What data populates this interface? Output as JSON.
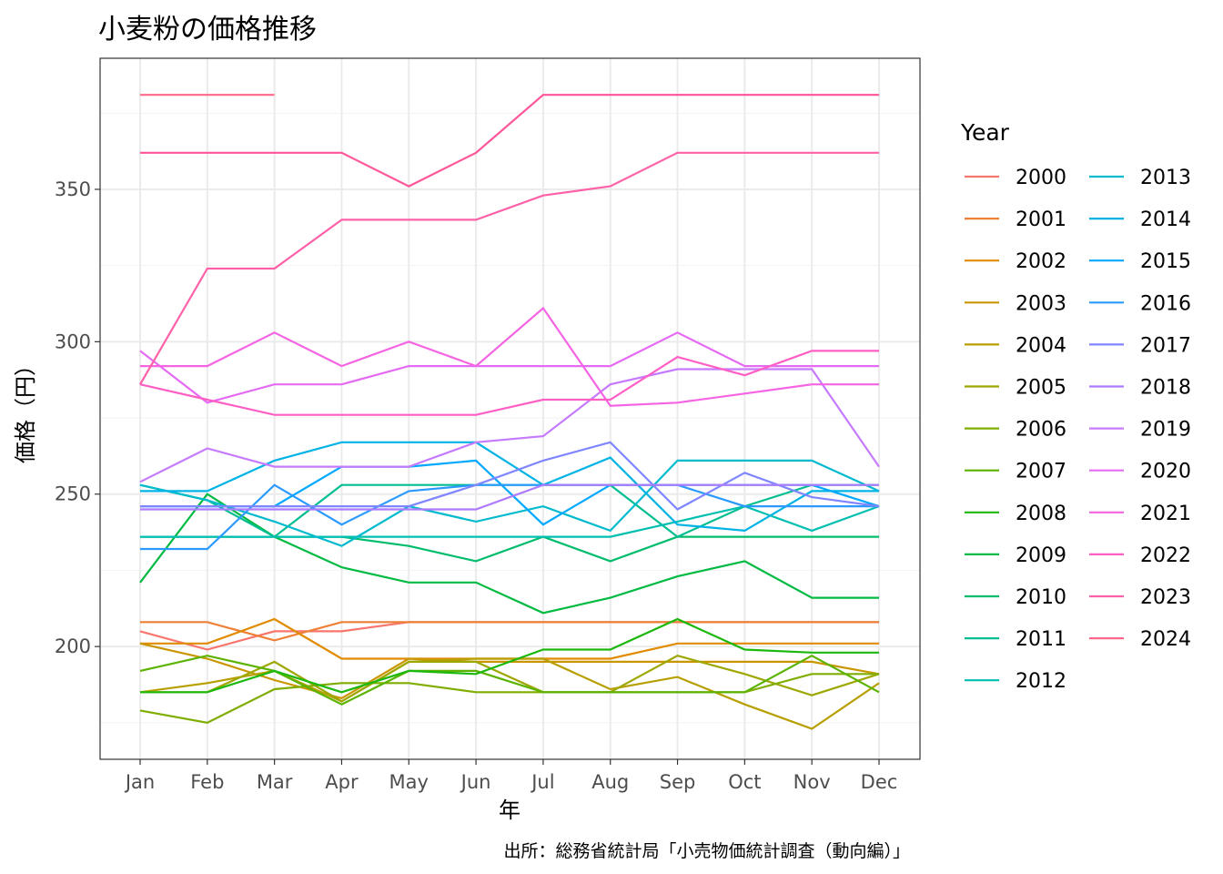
{
  "chart_data": {
    "type": "line",
    "title": "小麦粉の価格推移",
    "xlabel": "年",
    "ylabel": "価格（円）",
    "caption": "出所：総務省統計局「小売物価統計調査（動向編）」",
    "legend_title": "Year",
    "legend_position": "right",
    "grid": true,
    "categories": [
      "Jan",
      "Feb",
      "Mar",
      "Apr",
      "May",
      "Jun",
      "Jul",
      "Aug",
      "Sep",
      "Oct",
      "Nov",
      "Dec"
    ],
    "ylim": [
      163,
      393
    ],
    "yticks": [
      200,
      250,
      300,
      350
    ],
    "series": [
      {
        "name": "2000",
        "color": "#F8766D",
        "values": [
          205,
          199,
          205,
          205,
          208,
          208,
          208,
          208,
          208,
          208,
          208,
          208
        ]
      },
      {
        "name": "2001",
        "color": "#EE7F36",
        "values": [
          208,
          208,
          202,
          208,
          208,
          208,
          208,
          208,
          208,
          208,
          208,
          208
        ]
      },
      {
        "name": "2002",
        "color": "#E08B00",
        "values": [
          201,
          201,
          209,
          196,
          196,
          196,
          196,
          196,
          201,
          201,
          201,
          201
        ]
      },
      {
        "name": "2003",
        "color": "#CA9600",
        "values": [
          201,
          196,
          189,
          183,
          196,
          195,
          195,
          195,
          195,
          195,
          195,
          191
        ]
      },
      {
        "name": "2004",
        "color": "#B89F00",
        "values": [
          185,
          188,
          192,
          182,
          195,
          196,
          196,
          186,
          190,
          181,
          173,
          188
        ]
      },
      {
        "name": "2005",
        "color": "#9EA700",
        "values": [
          185,
          185,
          195,
          182,
          195,
          195,
          185,
          185,
          197,
          191,
          184,
          191
        ]
      },
      {
        "name": "2006",
        "color": "#7FAE00",
        "values": [
          179,
          175,
          186,
          188,
          188,
          185,
          185,
          185,
          185,
          185,
          191,
          191
        ]
      },
      {
        "name": "2007",
        "color": "#5BB300",
        "values": [
          192,
          197,
          192,
          181,
          192,
          192,
          185,
          185,
          185,
          185,
          197,
          185
        ]
      },
      {
        "name": "2008",
        "color": "#1CB80E",
        "values": [
          185,
          185,
          192,
          185,
          192,
          191,
          199,
          199,
          209,
          199,
          198,
          198
        ]
      },
      {
        "name": "2009",
        "color": "#00BA42",
        "values": [
          221,
          250,
          236,
          226,
          221,
          221,
          211,
          216,
          223,
          228,
          216,
          216
        ]
      },
      {
        "name": "2010",
        "color": "#00BD6D",
        "values": [
          236,
          236,
          236,
          236,
          233,
          228,
          236,
          228,
          236,
          236,
          236,
          236
        ]
      },
      {
        "name": "2011",
        "color": "#00BE91",
        "values": [
          253,
          248,
          236,
          253,
          253,
          253,
          253,
          253,
          236,
          246,
          253,
          253
        ]
      },
      {
        "name": "2012",
        "color": "#00BFB1",
        "values": [
          236,
          236,
          236,
          236,
          236,
          236,
          236,
          236,
          241,
          246,
          238,
          246
        ]
      },
      {
        "name": "2013",
        "color": "#00BACE",
        "values": [
          253,
          248,
          241,
          233,
          246,
          241,
          246,
          238,
          261,
          261,
          261,
          251
        ]
      },
      {
        "name": "2014",
        "color": "#00B3E5",
        "values": [
          251,
          251,
          261,
          267,
          267,
          267,
          253,
          262,
          240,
          238,
          251,
          251
        ]
      },
      {
        "name": "2015",
        "color": "#00A8FF",
        "values": [
          246,
          246,
          246,
          259,
          259,
          261,
          240,
          253,
          253,
          253,
          253,
          246
        ]
      },
      {
        "name": "2016",
        "color": "#2B99FF",
        "values": [
          232,
          232,
          253,
          240,
          251,
          253,
          253,
          253,
          253,
          246,
          246,
          246
        ]
      },
      {
        "name": "2017",
        "color": "#7F86FF",
        "values": [
          246,
          246,
          246,
          246,
          246,
          253,
          261,
          267,
          245,
          257,
          249,
          246
        ]
      },
      {
        "name": "2018",
        "color": "#AE7AFF",
        "values": [
          245,
          245,
          245,
          245,
          245,
          245,
          253,
          253,
          253,
          253,
          253,
          253
        ]
      },
      {
        "name": "2019",
        "color": "#C67BFF",
        "values": [
          254,
          265,
          259,
          259,
          259,
          267,
          269,
          286,
          291,
          291,
          291,
          259
        ]
      },
      {
        "name": "2020",
        "color": "#E56BF3",
        "values": [
          297,
          280,
          286,
          286,
          292,
          292,
          292,
          292,
          303,
          292,
          292,
          292
        ]
      },
      {
        "name": "2021",
        "color": "#F564E3",
        "values": [
          292,
          292,
          303,
          292,
          300,
          292,
          311,
          279,
          280,
          283,
          286,
          286
        ]
      },
      {
        "name": "2022",
        "color": "#FF5FC4",
        "values": [
          286,
          281,
          276,
          276,
          276,
          276,
          281,
          281,
          295,
          289,
          297,
          297
        ]
      },
      {
        "name": "2023",
        "color": "#FF61A9",
        "values": [
          286,
          324,
          324,
          340,
          340,
          340,
          348,
          351,
          362,
          362,
          362,
          362
        ]
      },
      {
        "name": "2024",
        "color": "#FF6A8A",
        "values": [
          381,
          381,
          381,
          null,
          null,
          null,
          null,
          null,
          null,
          null,
          null,
          null
        ]
      },
      {
        "name": "",
        "color": "#FF5599",
        "values": [
          362,
          362,
          362,
          362,
          351,
          362,
          381,
          381,
          381,
          381,
          381,
          381
        ]
      }
    ]
  }
}
